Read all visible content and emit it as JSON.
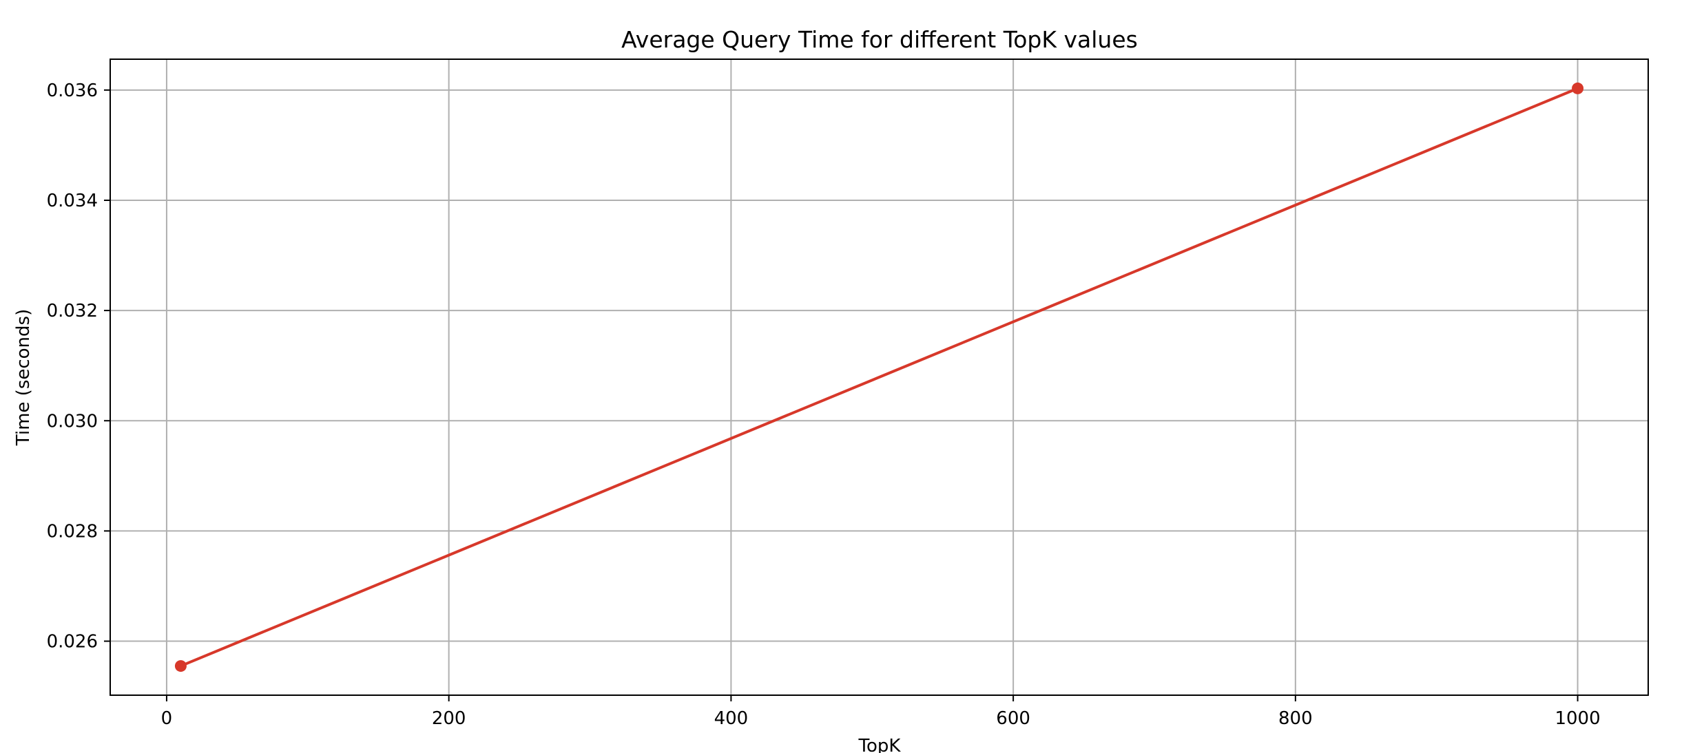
{
  "chart_data": {
    "type": "line",
    "title": "Average Query Time for different TopK values",
    "xlabel": "TopK",
    "ylabel": "Time (seconds)",
    "xlim": [
      -40,
      1050
    ],
    "ylim": [
      0.02502,
      0.03656
    ],
    "xticks": [
      0,
      200,
      400,
      600,
      800,
      1000
    ],
    "xtick_labels": [
      "0",
      "200",
      "400",
      "600",
      "800",
      "1000"
    ],
    "yticks": [
      0.026,
      0.028,
      0.03,
      0.032,
      0.034,
      0.036
    ],
    "ytick_labels": [
      "0.026",
      "0.028",
      "0.030",
      "0.032",
      "0.034",
      "0.036"
    ],
    "grid": true,
    "series": [
      {
        "color": "#d7382a",
        "marker": "circle",
        "x": [
          10,
          1000
        ],
        "y": [
          0.02555,
          0.03603
        ]
      }
    ]
  }
}
